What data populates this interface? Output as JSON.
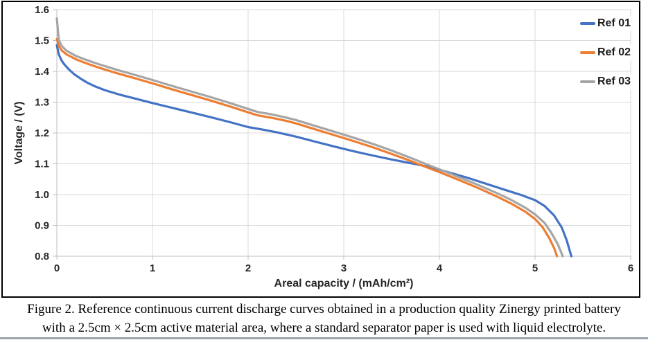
{
  "caption": {
    "line1": "Figure 2. Reference continuous current discharge curves obtained in a production quality Zinergy printed battery",
    "line2": "with a 2.5cm × 2.5cm active material area, where a standard separator paper is used with liquid electrolyte."
  },
  "chart_data": {
    "type": "line",
    "title": "",
    "xlabel": "Areal capacity / (mAh/cm²)",
    "ylabel": "Voltage / (V)",
    "xlim": [
      0,
      6
    ],
    "ylim": [
      0.8,
      1.6
    ],
    "x_ticks": [
      0,
      1,
      2,
      3,
      4,
      5,
      6
    ],
    "y_ticks": [
      0.8,
      0.9,
      1.0,
      1.1,
      1.2,
      1.3,
      1.4,
      1.5,
      1.6
    ],
    "grid": true,
    "legend_position": "top-right",
    "grid_color": "#d9d9d9",
    "axis_color": "#bfbfbf",
    "tick_label_color": "#262626",
    "series": [
      {
        "name": "Ref 01",
        "color": "#4472C4",
        "points": [
          [
            0,
            1.485
          ],
          [
            0.02,
            1.455
          ],
          [
            0.05,
            1.435
          ],
          [
            0.08,
            1.422
          ],
          [
            0.12,
            1.408
          ],
          [
            0.18,
            1.391
          ],
          [
            0.25,
            1.376
          ],
          [
            0.32,
            1.363
          ],
          [
            0.4,
            1.351
          ],
          [
            0.5,
            1.339
          ],
          [
            0.65,
            1.325
          ],
          [
            0.8,
            1.313
          ],
          [
            1.0,
            1.297
          ],
          [
            1.2,
            1.282
          ],
          [
            1.4,
            1.267
          ],
          [
            1.6,
            1.252
          ],
          [
            1.8,
            1.236
          ],
          [
            2.0,
            1.219
          ],
          [
            2.15,
            1.211
          ],
          [
            2.3,
            1.202
          ],
          [
            2.5,
            1.188
          ],
          [
            2.7,
            1.172
          ],
          [
            2.9,
            1.156
          ],
          [
            3.1,
            1.141
          ],
          [
            3.3,
            1.127
          ],
          [
            3.5,
            1.114
          ],
          [
            3.65,
            1.105
          ],
          [
            3.8,
            1.096
          ],
          [
            3.95,
            1.085
          ],
          [
            4.1,
            1.072
          ],
          [
            4.3,
            1.054
          ],
          [
            4.5,
            1.034
          ],
          [
            4.7,
            1.014
          ],
          [
            4.85,
            0.999
          ],
          [
            5.0,
            0.982
          ],
          [
            5.1,
            0.963
          ],
          [
            5.2,
            0.932
          ],
          [
            5.28,
            0.893
          ],
          [
            5.33,
            0.853
          ],
          [
            5.38,
            0.8
          ]
        ]
      },
      {
        "name": "Ref 02",
        "color": "#ED7D31",
        "points": [
          [
            0,
            1.505
          ],
          [
            0.02,
            1.483
          ],
          [
            0.05,
            1.468
          ],
          [
            0.1,
            1.455
          ],
          [
            0.2,
            1.439
          ],
          [
            0.3,
            1.427
          ],
          [
            0.4,
            1.416
          ],
          [
            0.5,
            1.406
          ],
          [
            0.65,
            1.392
          ],
          [
            0.8,
            1.379
          ],
          [
            1.0,
            1.361
          ],
          [
            1.2,
            1.342
          ],
          [
            1.4,
            1.324
          ],
          [
            1.6,
            1.306
          ],
          [
            1.8,
            1.287
          ],
          [
            2.0,
            1.267
          ],
          [
            2.1,
            1.257
          ],
          [
            2.25,
            1.249
          ],
          [
            2.4,
            1.239
          ],
          [
            2.5,
            1.231
          ],
          [
            2.7,
            1.212
          ],
          [
            2.9,
            1.193
          ],
          [
            3.1,
            1.174
          ],
          [
            3.3,
            1.154
          ],
          [
            3.5,
            1.132
          ],
          [
            3.7,
            1.109
          ],
          [
            3.9,
            1.085
          ],
          [
            4.0,
            1.073
          ],
          [
            4.2,
            1.048
          ],
          [
            4.4,
            1.022
          ],
          [
            4.6,
            0.994
          ],
          [
            4.75,
            0.971
          ],
          [
            4.9,
            0.944
          ],
          [
            5.0,
            0.921
          ],
          [
            5.08,
            0.894
          ],
          [
            5.15,
            0.858
          ],
          [
            5.2,
            0.826
          ],
          [
            5.23,
            0.8
          ]
        ]
      },
      {
        "name": "Ref 03",
        "color": "#A5A5A5",
        "points": [
          [
            0,
            1.572
          ],
          [
            0.02,
            1.502
          ],
          [
            0.05,
            1.483
          ],
          [
            0.1,
            1.467
          ],
          [
            0.2,
            1.45
          ],
          [
            0.3,
            1.438
          ],
          [
            0.4,
            1.427
          ],
          [
            0.5,
            1.417
          ],
          [
            0.65,
            1.403
          ],
          [
            0.8,
            1.39
          ],
          [
            1.0,
            1.372
          ],
          [
            1.2,
            1.353
          ],
          [
            1.4,
            1.335
          ],
          [
            1.6,
            1.317
          ],
          [
            1.8,
            1.298
          ],
          [
            2.0,
            1.278
          ],
          [
            2.1,
            1.268
          ],
          [
            2.25,
            1.26
          ],
          [
            2.4,
            1.25
          ],
          [
            2.5,
            1.242
          ],
          [
            2.7,
            1.223
          ],
          [
            2.9,
            1.204
          ],
          [
            3.1,
            1.185
          ],
          [
            3.3,
            1.165
          ],
          [
            3.5,
            1.143
          ],
          [
            3.7,
            1.119
          ],
          [
            3.9,
            1.094
          ],
          [
            4.0,
            1.082
          ],
          [
            4.2,
            1.057
          ],
          [
            4.4,
            1.032
          ],
          [
            4.6,
            1.005
          ],
          [
            4.75,
            0.983
          ],
          [
            4.9,
            0.957
          ],
          [
            5.0,
            0.936
          ],
          [
            5.1,
            0.908
          ],
          [
            5.17,
            0.876
          ],
          [
            5.24,
            0.838
          ],
          [
            5.29,
            0.8
          ]
        ]
      }
    ]
  }
}
